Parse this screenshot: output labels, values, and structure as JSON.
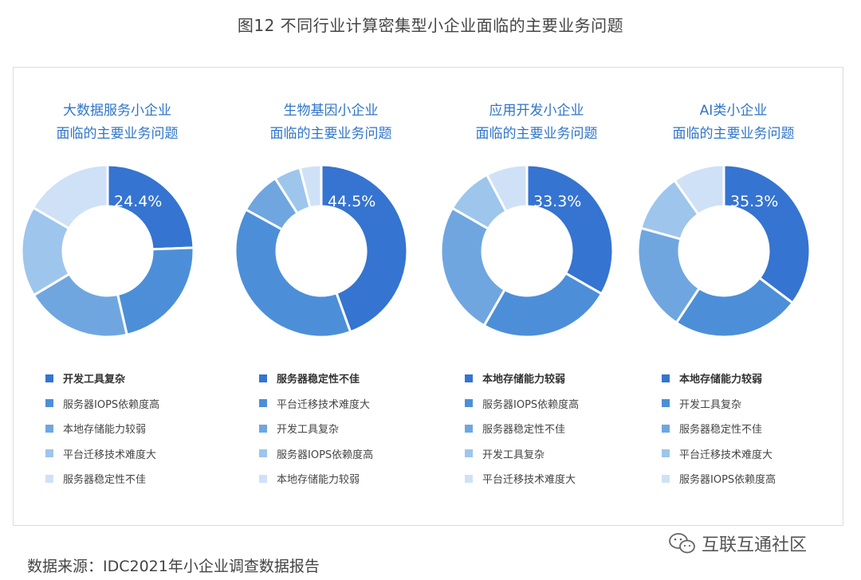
{
  "figure_title": "图12  不同行业计算密集型小企业面临的主要业务问题",
  "source": "数据来源：IDC2021年小企业调查数据报告",
  "watermark": "互联互通社区",
  "colors": [
    "#3574d0",
    "#4c8fd8",
    "#6fa6e0",
    "#9ec5ec",
    "#cfe1f6"
  ],
  "chart_data": [
    {
      "type": "pie",
      "title_line1": "大数据服务小企业",
      "title_line2": "面临的主要业务问题",
      "labels": [
        "开发工具复杂",
        "服务器IOPS依赖度高",
        "本地存储能力较弱",
        "平台迁移技术难度大",
        "服务器稳定性不佳"
      ],
      "values": [
        24.4,
        22.0,
        20.0,
        17.0,
        16.6
      ],
      "label_text": "24.4%"
    },
    {
      "type": "pie",
      "title_line1": "生物基因小企业",
      "title_line2": "面临的主要业务问题",
      "labels": [
        "服务器稳定性不佳",
        "平台迁移技术难度大",
        "开发工具复杂",
        "服务器IOPS依赖度高",
        "本地存储能力较弱"
      ],
      "values": [
        44.5,
        38.5,
        8.0,
        5.0,
        4.0
      ],
      "label_text": "44.5%"
    },
    {
      "type": "pie",
      "title_line1": "应用开发小企业",
      "title_line2": "面临的主要业务问题",
      "labels": [
        "本地存储能力较弱",
        "服务器IOPS依赖度高",
        "服务器稳定性不佳",
        "开发工具复杂",
        "平台迁移技术难度大"
      ],
      "values": [
        33.3,
        25.0,
        25.0,
        9.0,
        7.7
      ],
      "label_text": "33.3%"
    },
    {
      "type": "pie",
      "title_line1": "AI类小企业",
      "title_line2": "面临的主要业务问题",
      "labels": [
        "本地存储能力较弱",
        "开发工具复杂",
        "服务器稳定性不佳",
        "平台迁移技术难度大",
        "服务器IOPS依赖度高"
      ],
      "values": [
        35.3,
        24.0,
        20.0,
        11.0,
        9.7
      ],
      "label_text": "35.3%"
    }
  ]
}
